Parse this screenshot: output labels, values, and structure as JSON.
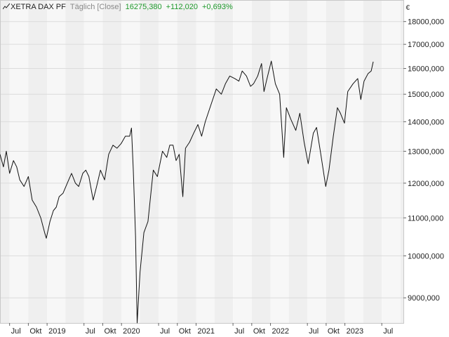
{
  "header": {
    "symbol": "XETRA DAX PF",
    "mode": "Täglich [Close]",
    "last": "16275,380",
    "change": "+112,020",
    "change_pct": "+0,693%",
    "currency": "€",
    "icon": "line-chart-icon"
  },
  "colors": {
    "up": "#1f9a2c",
    "line": "#111111",
    "band_light": "#f7f7f7",
    "band_dark": "#efefef",
    "grid": "#dcdcdc"
  },
  "chart_data": {
    "type": "line",
    "scale": "log",
    "grid": true,
    "y_ticks": [
      "9000,000",
      "10000,000",
      "11000,000",
      "12000,000",
      "13000,000",
      "14000,000",
      "15000,000",
      "16000,000",
      "17000,000",
      "18000,000"
    ],
    "y_tick_values": [
      9000,
      10000,
      11000,
      12000,
      13000,
      14000,
      15000,
      16000,
      17000,
      18000
    ],
    "ylim": [
      8450,
      19000
    ],
    "xlim": [
      "2018-05-15",
      "2023-10-15"
    ],
    "x_ticks": [
      {
        "label": "Jul",
        "date": "2018-07-01"
      },
      {
        "label": "Okt",
        "date": "2018-10-01"
      },
      {
        "label": "2019",
        "date": "2019-01-01"
      },
      {
        "label": "Jul",
        "date": "2019-07-01"
      },
      {
        "label": "Okt",
        "date": "2019-10-01"
      },
      {
        "label": "2020",
        "date": "2020-01-01"
      },
      {
        "label": "Jul",
        "date": "2020-07-01"
      },
      {
        "label": "Okt",
        "date": "2020-10-01"
      },
      {
        "label": "2021",
        "date": "2021-01-01"
      },
      {
        "label": "Jul",
        "date": "2021-07-01"
      },
      {
        "label": "Okt",
        "date": "2021-10-01"
      },
      {
        "label": "2022",
        "date": "2022-01-01"
      },
      {
        "label": "Jul",
        "date": "2022-07-01"
      },
      {
        "label": "Okt",
        "date": "2022-10-01"
      },
      {
        "label": "2023",
        "date": "2023-01-01"
      },
      {
        "label": "Jul",
        "date": "2023-07-01"
      }
    ],
    "series": [
      {
        "points": [
          [
            "2018-05-15",
            12900
          ],
          [
            "2018-06-01",
            12500
          ],
          [
            "2018-06-15",
            13000
          ],
          [
            "2018-07-01",
            12300
          ],
          [
            "2018-07-20",
            12700
          ],
          [
            "2018-08-05",
            12500
          ],
          [
            "2018-08-20",
            12100
          ],
          [
            "2018-09-10",
            11900
          ],
          [
            "2018-10-01",
            12200
          ],
          [
            "2018-10-20",
            11500
          ],
          [
            "2018-11-10",
            11300
          ],
          [
            "2018-12-01",
            11000
          ],
          [
            "2018-12-20",
            10600
          ],
          [
            "2018-12-28",
            10450
          ],
          [
            "2019-01-15",
            10900
          ],
          [
            "2019-02-01",
            11200
          ],
          [
            "2019-02-15",
            11300
          ],
          [
            "2019-03-01",
            11600
          ],
          [
            "2019-03-20",
            11700
          ],
          [
            "2019-04-10",
            12000
          ],
          [
            "2019-05-01",
            12300
          ],
          [
            "2019-05-20",
            12000
          ],
          [
            "2019-06-05",
            11900
          ],
          [
            "2019-06-25",
            12300
          ],
          [
            "2019-07-10",
            12400
          ],
          [
            "2019-07-25",
            12200
          ],
          [
            "2019-08-15",
            11500
          ],
          [
            "2019-09-01",
            11900
          ],
          [
            "2019-09-20",
            12400
          ],
          [
            "2019-10-10",
            12100
          ],
          [
            "2019-10-30",
            12900
          ],
          [
            "2019-11-20",
            13200
          ],
          [
            "2019-12-10",
            13100
          ],
          [
            "2019-12-30",
            13250
          ],
          [
            "2020-01-20",
            13500
          ],
          [
            "2020-02-10",
            13500
          ],
          [
            "2020-02-19",
            13780
          ],
          [
            "2020-02-28",
            12400
          ],
          [
            "2020-03-10",
            10500
          ],
          [
            "2020-03-18",
            8450
          ],
          [
            "2020-04-01",
            9600
          ],
          [
            "2020-04-20",
            10600
          ],
          [
            "2020-05-10",
            10900
          ],
          [
            "2020-06-05",
            12400
          ],
          [
            "2020-06-25",
            12200
          ],
          [
            "2020-07-20",
            13000
          ],
          [
            "2020-08-10",
            12800
          ],
          [
            "2020-08-25",
            13200
          ],
          [
            "2020-09-10",
            13200
          ],
          [
            "2020-09-25",
            12700
          ],
          [
            "2020-10-10",
            12900
          ],
          [
            "2020-10-28",
            11600
          ],
          [
            "2020-11-10",
            13100
          ],
          [
            "2020-11-30",
            13300
          ],
          [
            "2020-12-20",
            13600
          ],
          [
            "2021-01-10",
            13900
          ],
          [
            "2021-01-28",
            13500
          ],
          [
            "2021-02-15",
            14000
          ],
          [
            "2021-03-10",
            14500
          ],
          [
            "2021-04-10",
            15200
          ],
          [
            "2021-05-05",
            15000
          ],
          [
            "2021-05-25",
            15400
          ],
          [
            "2021-06-15",
            15700
          ],
          [
            "2021-07-10",
            15600
          ],
          [
            "2021-07-30",
            15500
          ],
          [
            "2021-08-15",
            15900
          ],
          [
            "2021-09-05",
            15700
          ],
          [
            "2021-09-25",
            15300
          ],
          [
            "2021-10-10",
            15400
          ],
          [
            "2021-10-30",
            15700
          ],
          [
            "2021-11-18",
            16200
          ],
          [
            "2021-11-30",
            15100
          ],
          [
            "2021-12-15",
            15600
          ],
          [
            "2022-01-05",
            16300
          ],
          [
            "2022-01-25",
            15400
          ],
          [
            "2022-02-15",
            15000
          ],
          [
            "2022-03-07",
            12800
          ],
          [
            "2022-03-20",
            14500
          ],
          [
            "2022-04-10",
            14100
          ],
          [
            "2022-05-05",
            13700
          ],
          [
            "2022-05-25",
            14300
          ],
          [
            "2022-06-15",
            13300
          ],
          [
            "2022-07-05",
            12600
          ],
          [
            "2022-07-30",
            13600
          ],
          [
            "2022-08-15",
            13800
          ],
          [
            "2022-09-05",
            12900
          ],
          [
            "2022-09-29",
            11900
          ],
          [
            "2022-10-15",
            12400
          ],
          [
            "2022-11-05",
            13500
          ],
          [
            "2022-11-25",
            14500
          ],
          [
            "2022-12-10",
            14300
          ],
          [
            "2022-12-30",
            13950
          ],
          [
            "2023-01-15",
            15100
          ],
          [
            "2023-02-10",
            15400
          ],
          [
            "2023-03-05",
            15600
          ],
          [
            "2023-03-20",
            14800
          ],
          [
            "2023-04-05",
            15500
          ],
          [
            "2023-04-25",
            15800
          ],
          [
            "2023-05-10",
            15900
          ],
          [
            "2023-05-20",
            16275
          ]
        ]
      }
    ]
  }
}
